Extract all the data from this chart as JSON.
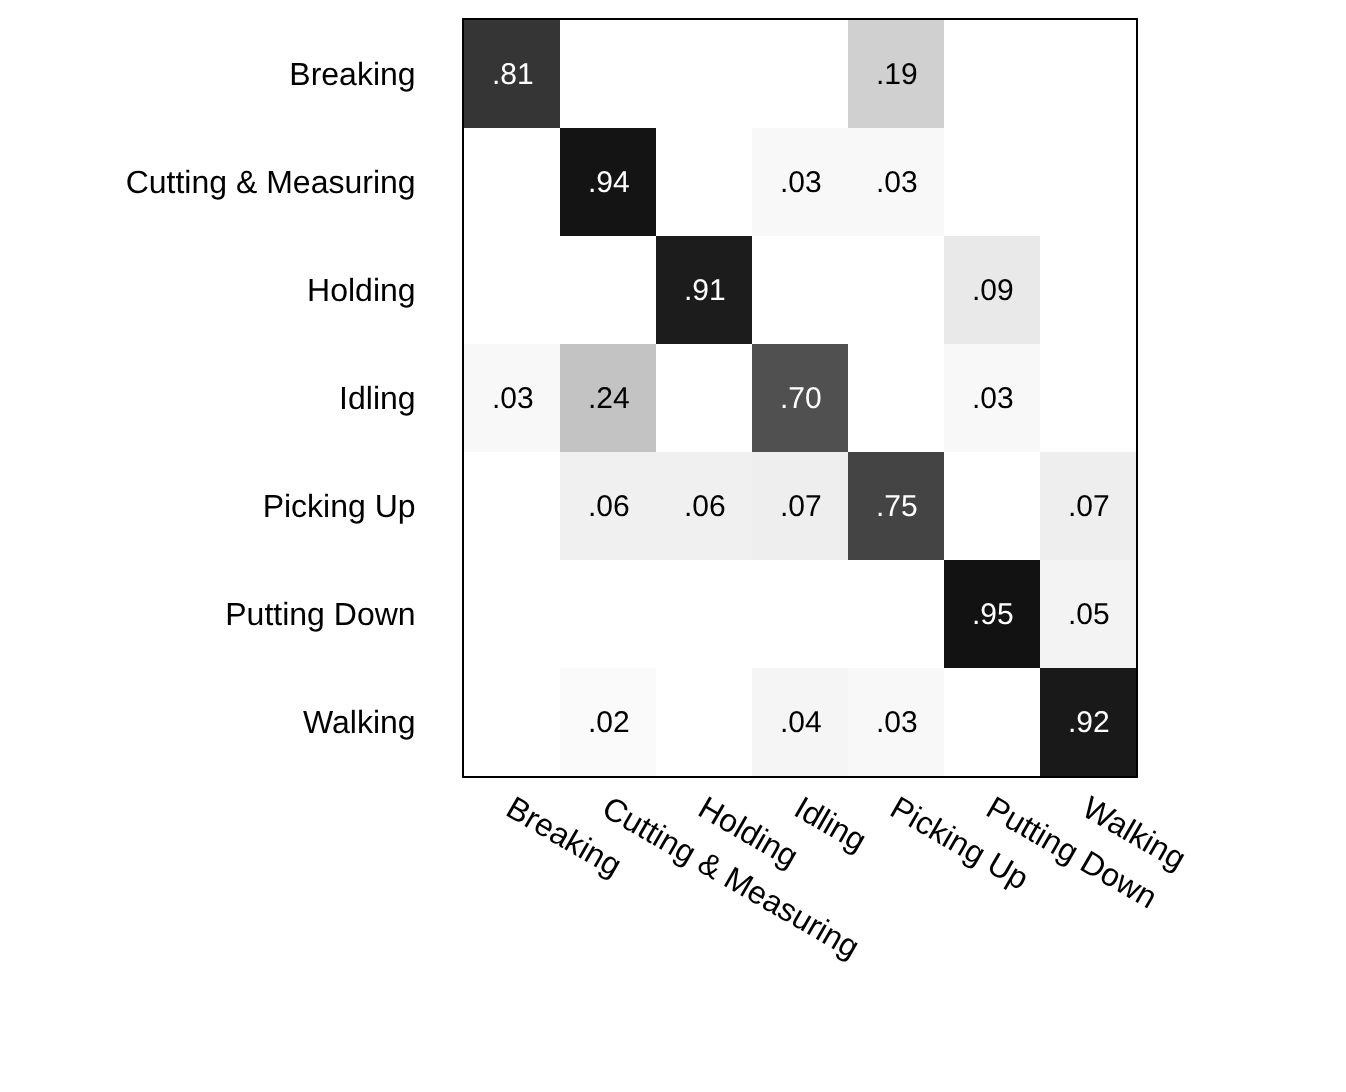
{
  "chart_data": {
    "type": "heatmap",
    "categories": [
      "Breaking",
      "Cutting & Measuring",
      "Holding",
      "Idling",
      "Picking Up",
      "Putting Down",
      "Walking"
    ],
    "y_categories": [
      "Breaking",
      "Cutting & Measuring",
      "Holding",
      "Idling",
      "Picking Up",
      "Putting Down",
      "Walking"
    ],
    "cells": [
      [
        0.81,
        null,
        null,
        null,
        0.19,
        null,
        null
      ],
      [
        null,
        0.94,
        null,
        0.03,
        0.03,
        null,
        null
      ],
      [
        null,
        null,
        0.91,
        null,
        null,
        0.09,
        null
      ],
      [
        0.03,
        0.24,
        null,
        0.7,
        null,
        0.03,
        null
      ],
      [
        null,
        0.06,
        0.06,
        0.07,
        0.75,
        null,
        0.07
      ],
      [
        null,
        null,
        null,
        null,
        null,
        0.95,
        0.05
      ],
      [
        null,
        0.02,
        null,
        0.04,
        0.03,
        null,
        0.92
      ]
    ],
    "cell_labels": [
      [
        ".81",
        null,
        null,
        null,
        ".19",
        null,
        null
      ],
      [
        null,
        ".94",
        null,
        ".03",
        ".03",
        null,
        null
      ],
      [
        null,
        null,
        ".91",
        null,
        null,
        ".09",
        null
      ],
      [
        ".03",
        ".24",
        null,
        ".70",
        null,
        ".03",
        null
      ],
      [
        null,
        ".06",
        ".06",
        ".07",
        ".75",
        null,
        ".07"
      ],
      [
        null,
        null,
        null,
        null,
        null,
        ".95",
        ".05"
      ],
      [
        null,
        ".02",
        null,
        ".04",
        ".03",
        null,
        ".92"
      ]
    ]
  }
}
